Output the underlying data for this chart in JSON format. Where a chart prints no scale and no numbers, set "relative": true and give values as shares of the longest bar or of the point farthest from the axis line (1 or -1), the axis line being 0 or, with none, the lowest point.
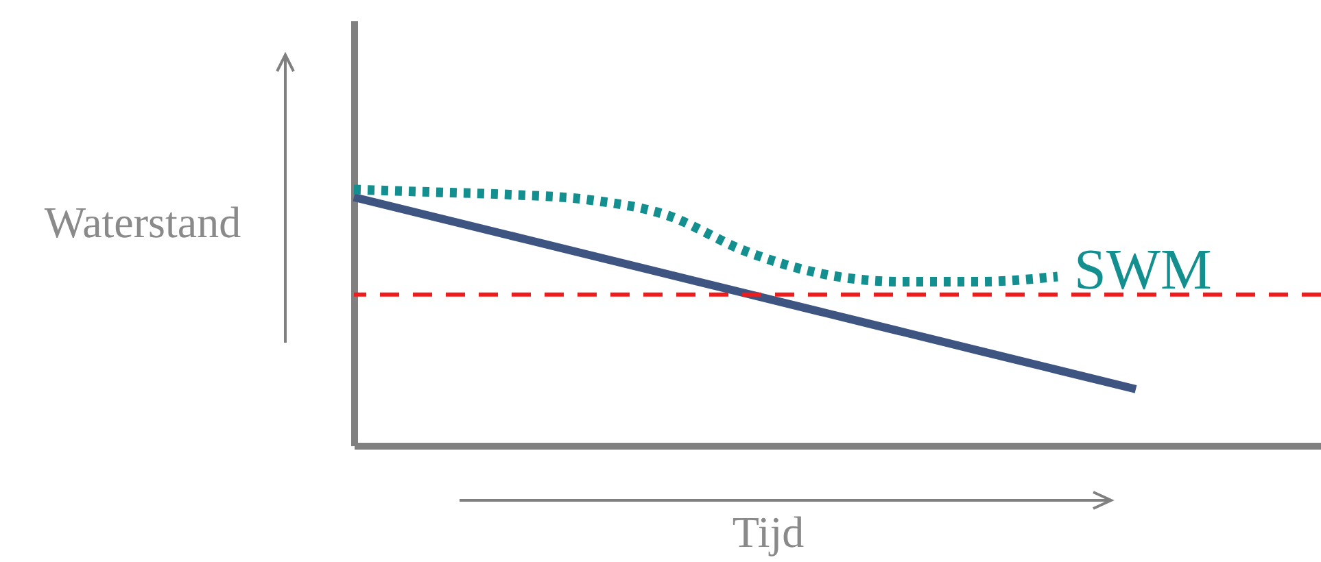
{
  "chart_data": {
    "type": "line",
    "relative": true,
    "xlabel": "Tijd",
    "ylabel": "Waterstand",
    "categories": [
      null,
      null,
      null,
      null,
      null,
      null,
      null,
      null,
      null,
      null,
      null,
      null,
      null
    ],
    "series": [
      {
        "color": "#3d5580",
        "line_style": "solid",
        "values": [
          0.97,
          0.895,
          0.82,
          0.745,
          0.67,
          0.595,
          0.52,
          0.445,
          0.37,
          0.295,
          0.22,
          null,
          null
        ]
      },
      {
        "name": "SWM",
        "color": "#138f8f",
        "line_style": "dotted",
        "values": [
          1.0,
          0.99,
          0.98,
          0.96,
          0.9,
          0.76,
          0.67,
          0.64,
          0.64,
          0.66,
          null,
          null,
          null
        ]
      }
    ],
    "ref_lines": [
      {
        "axis": "y",
        "value": 0.59,
        "color": "#ee1c1c",
        "line_style": "dashed"
      }
    ],
    "grid": false,
    "marker": "none"
  }
}
